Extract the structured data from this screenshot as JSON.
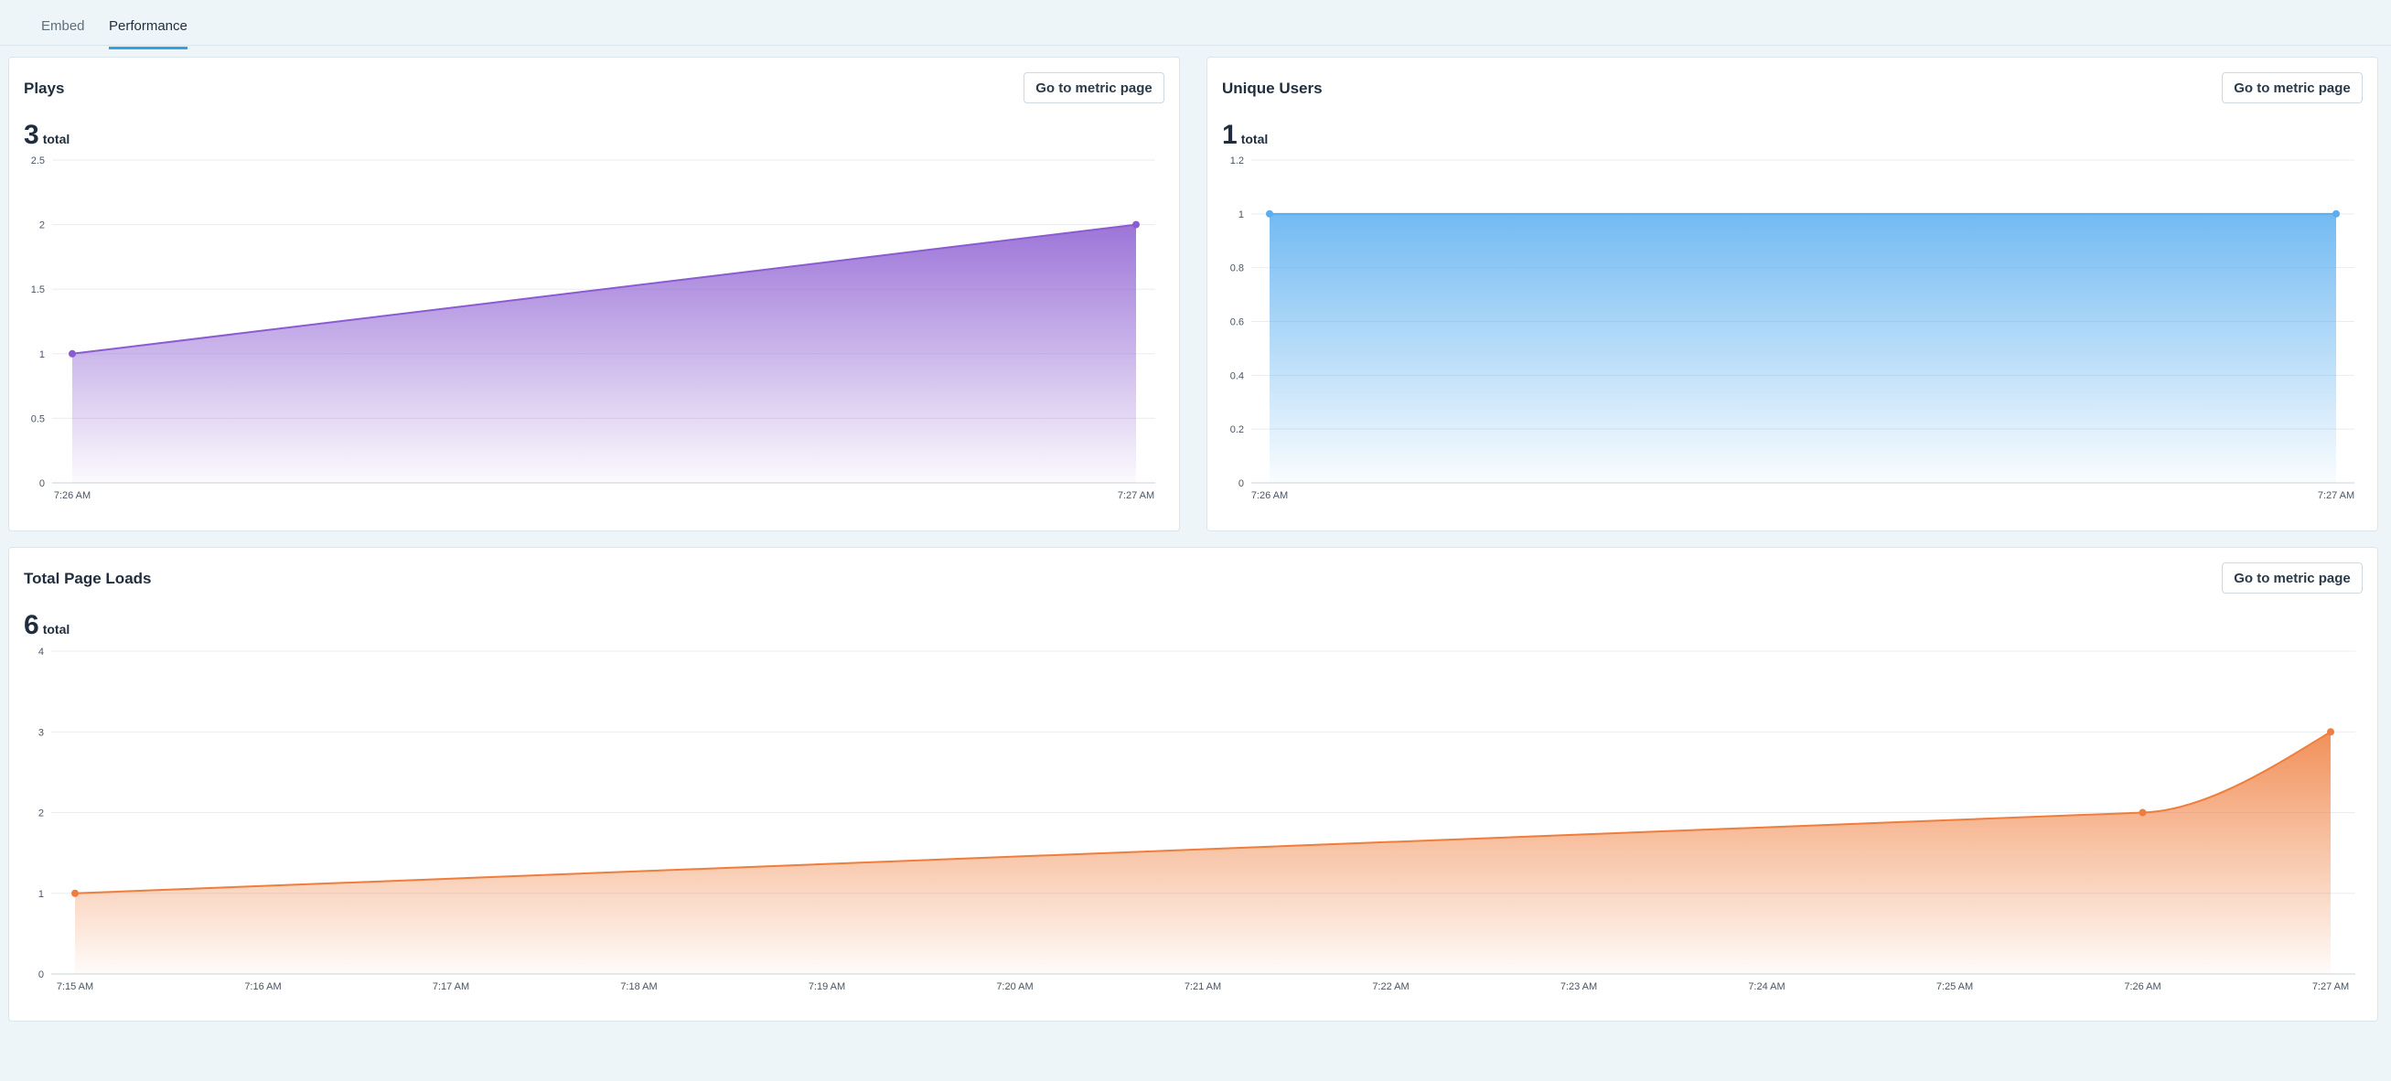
{
  "tabs": [
    {
      "label": "Embed",
      "active": false
    },
    {
      "label": "Performance",
      "active": true
    }
  ],
  "cards": {
    "plays": {
      "title": "Plays",
      "button": "Go to metric page",
      "total_value": "3",
      "total_word": "total",
      "chart_data": {
        "type": "area",
        "color": "#8b5cd1",
        "x": [
          "7:26 AM",
          "7:27 AM"
        ],
        "values": [
          1,
          2
        ],
        "ylim": [
          0,
          2.5
        ],
        "yticks": [
          "0",
          "0.5",
          "1",
          "1.5",
          "2",
          "2.5"
        ],
        "ytick_values": [
          0,
          0.5,
          1,
          1.5,
          2,
          2.5
        ],
        "grid": true
      }
    },
    "unique_users": {
      "title": "Unique Users",
      "button": "Go to metric page",
      "total_value": "1",
      "total_word": "total",
      "chart_data": {
        "type": "area",
        "color": "#5aaef0",
        "x": [
          "7:26 AM",
          "7:27 AM"
        ],
        "values": [
          1,
          1
        ],
        "ylim": [
          0,
          1.2
        ],
        "yticks": [
          "0",
          "0.2",
          "0.4",
          "0.6",
          "0.8",
          "1",
          "1.2"
        ],
        "ytick_values": [
          0,
          0.2,
          0.4,
          0.6,
          0.8,
          1,
          1.2
        ],
        "grid": true
      }
    },
    "page_loads": {
      "title": "Total Page Loads",
      "button": "Go to metric page",
      "total_value": "6",
      "total_word": "total",
      "chart_data": {
        "type": "area",
        "color": "#ef7d3c",
        "x": [
          "7:15 AM",
          "7:16 AM",
          "7:17 AM",
          "7:18 AM",
          "7:19 AM",
          "7:20 AM",
          "7:21 AM",
          "7:22 AM",
          "7:23 AM",
          "7:24 AM",
          "7:25 AM",
          "7:26 AM",
          "7:27 AM"
        ],
        "points": [
          {
            "x": "7:15 AM",
            "y": 1
          },
          {
            "x": "7:26 AM",
            "y": 2
          },
          {
            "x": "7:27 AM",
            "y": 3
          }
        ],
        "ylim": [
          0,
          4
        ],
        "yticks": [
          "0",
          "1",
          "2",
          "3",
          "4"
        ],
        "ytick_values": [
          0,
          1,
          2,
          3,
          4
        ],
        "grid": true
      }
    }
  }
}
